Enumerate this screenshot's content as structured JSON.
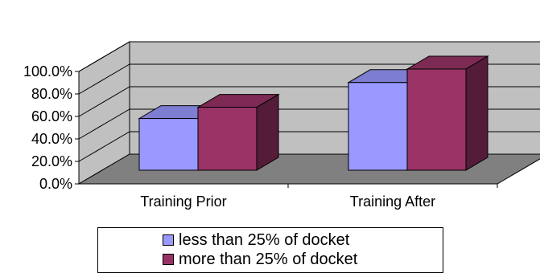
{
  "chart_data": {
    "type": "bar",
    "style": "3d-clustered-column",
    "categories": [
      "Training Prior",
      "Training After"
    ],
    "series": [
      {
        "name": "less than 25% of docket",
        "values": [
          46.0,
          78.0
        ],
        "color": "#9999ff"
      },
      {
        "name": "more than 25% of docket",
        "values": [
          56.0,
          90.0
        ],
        "color": "#993366"
      }
    ],
    "yticks": [
      "0.0%",
      "20.0%",
      "40.0%",
      "60.0%",
      "80.0%",
      "100.0%"
    ],
    "ylim": [
      0,
      100
    ],
    "grid": true,
    "legend_position": "bottom",
    "colors": {
      "walls": "#c0c0c0",
      "floor": "#808080",
      "gridline": "#000000"
    }
  }
}
